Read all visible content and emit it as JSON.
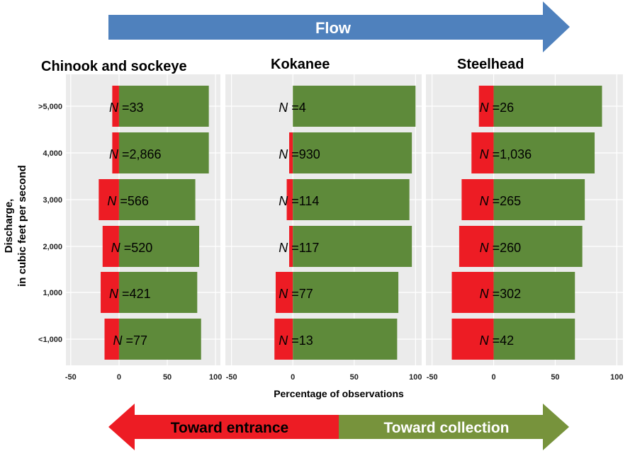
{
  "header_arrow": {
    "label": "Flow",
    "color": "#4f81bd"
  },
  "legend_arrow": {
    "left_label": "Toward entrance",
    "left_color": "#ed1c24",
    "right_label": "Toward collection",
    "right_color": "#77933c"
  },
  "colors": {
    "negative": "#ed1c24",
    "positive": "#5e8a3a",
    "panel_bg": "#ebebeb",
    "grid": "#ffffff"
  },
  "axes": {
    "ylabel_line1": "Discharge,",
    "ylabel_line2": "in cubic feet per second",
    "xlabel": "Percentage of observations"
  },
  "chart_data": {
    "type": "bar",
    "orientation": "horizontal",
    "categories": [
      ">5,000",
      "4,000",
      "3,000",
      "2,000",
      "1,000",
      "<1,000"
    ],
    "xlim": [
      -55,
      105
    ],
    "xticks": [
      -50,
      0,
      50,
      100
    ],
    "grid": true,
    "panels": [
      {
        "title": "Chinook and sockeye",
        "toward_entrance": [
          -7,
          -7,
          -21,
          -17,
          -19,
          -15
        ],
        "toward_collection": [
          93,
          93,
          79,
          83,
          81,
          85
        ],
        "n": [
          "33",
          "2,866",
          "566",
          "520",
          "421",
          "77"
        ]
      },
      {
        "title": "Kokanee",
        "toward_entrance": [
          0,
          -3,
          -5,
          -3,
          -14,
          -15
        ],
        "toward_collection": [
          100,
          97,
          95,
          97,
          86,
          85
        ],
        "n": [
          "4",
          "930",
          "114",
          "117",
          "77",
          "13"
        ]
      },
      {
        "title": "Steelhead",
        "toward_entrance": [
          -12,
          -18,
          -26,
          -28,
          -34,
          -34
        ],
        "toward_collection": [
          88,
          82,
          74,
          72,
          66,
          66
        ],
        "n": [
          "26",
          "1,036",
          "265",
          "260",
          "302",
          "42"
        ]
      }
    ],
    "n_prefix": "N",
    "n_suffix_sep": " ="
  }
}
